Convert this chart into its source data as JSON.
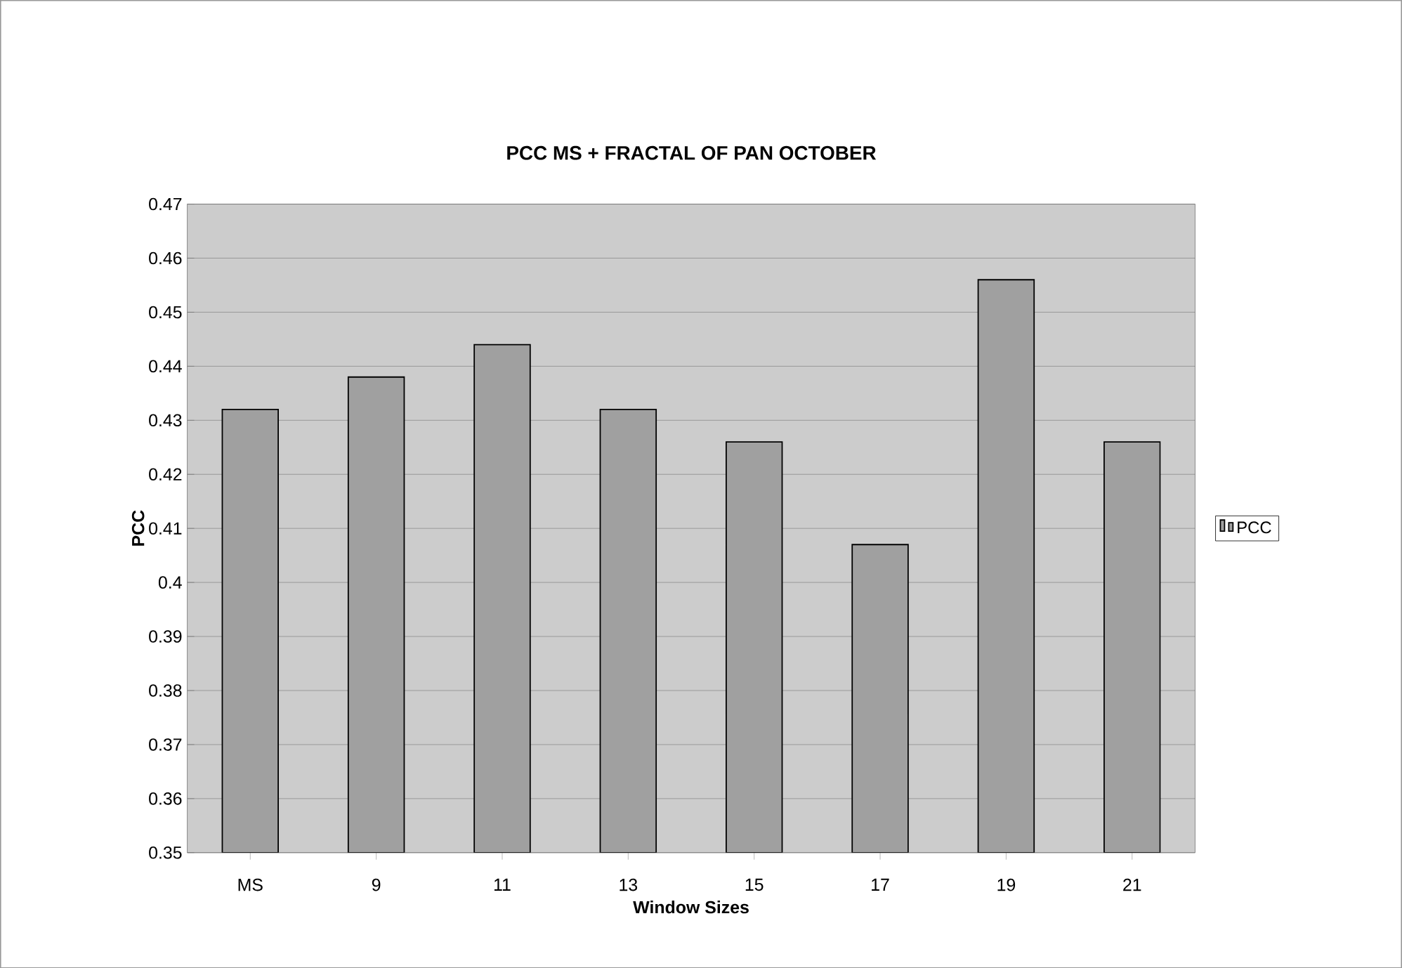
{
  "chart_data": {
    "type": "bar",
    "title": "PCC  MS +  FRACTAL OF PAN OCTOBER",
    "xlabel": "Window Sizes",
    "ylabel": "PCC",
    "categories": [
      "MS",
      "9",
      "11",
      "13",
      "15",
      "17",
      "19",
      "21"
    ],
    "series": [
      {
        "name": "PCC",
        "color": "#a0a0a0",
        "values": [
          0.432,
          0.438,
          0.444,
          0.432,
          0.426,
          0.407,
          0.456,
          0.426
        ]
      }
    ],
    "ylim": [
      0.35,
      0.47
    ],
    "yticks": [
      0.35,
      0.36,
      0.37,
      0.38,
      0.39,
      0.4,
      0.41,
      0.42,
      0.43,
      0.44,
      0.45,
      0.46,
      0.47
    ],
    "grid": "y",
    "legend": "right"
  }
}
